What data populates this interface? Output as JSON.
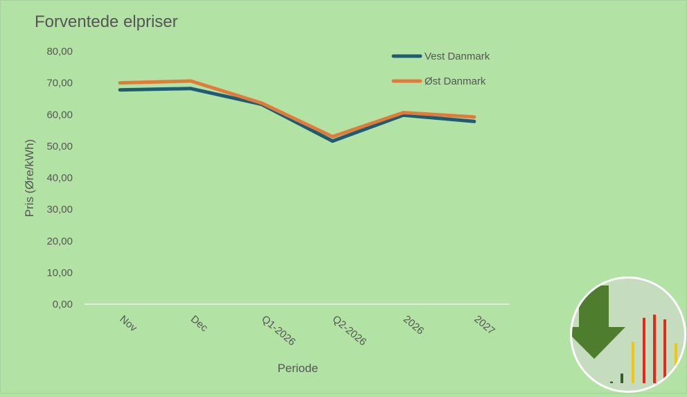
{
  "chart_data": {
    "type": "line",
    "title": "Forventede elpriser",
    "xlabel": "Periode",
    "ylabel": "Pris (Øre/kWh)",
    "categories": [
      "Nov",
      "Dec",
      "Q1-2026",
      "Q2-2026",
      "2026",
      "2027"
    ],
    "ylim": [
      0,
      80
    ],
    "yticks": [
      "0,00",
      "10,00",
      "20,00",
      "30,00",
      "40,00",
      "50,00",
      "60,00",
      "70,00",
      "80,00"
    ],
    "grid": false,
    "legend_position": "top-right",
    "series": [
      {
        "name": "Vest Danmark",
        "color": "#1f5c73",
        "values": [
          67.8,
          68.2,
          63.2,
          51.6,
          59.8,
          57.8
        ]
      },
      {
        "name": "Øst Danmark",
        "color": "#e07b39",
        "values": [
          70.0,
          70.6,
          63.6,
          53.0,
          60.6,
          59.2
        ]
      }
    ]
  },
  "colors": {
    "background": "#b3e3a4",
    "axis": "#dff0d8",
    "text": "#555555"
  },
  "logo": {
    "icon": "price-drop-logo-icon",
    "circle_fill": "#c6dcbe",
    "arrow_color": "#4f7d2e",
    "bars": [
      {
        "color": "#3b5a2a",
        "level": 0.02
      },
      {
        "color": "#3b5a2a",
        "level": 0.12
      },
      {
        "color": "#f2c511",
        "level": 0.52
      },
      {
        "color": "#e02a1a",
        "level": 0.82
      },
      {
        "color": "#e02a1a",
        "level": 0.86
      },
      {
        "color": "#e02a1a",
        "level": 0.8
      },
      {
        "color": "#f2c511",
        "level": 0.5
      }
    ]
  }
}
